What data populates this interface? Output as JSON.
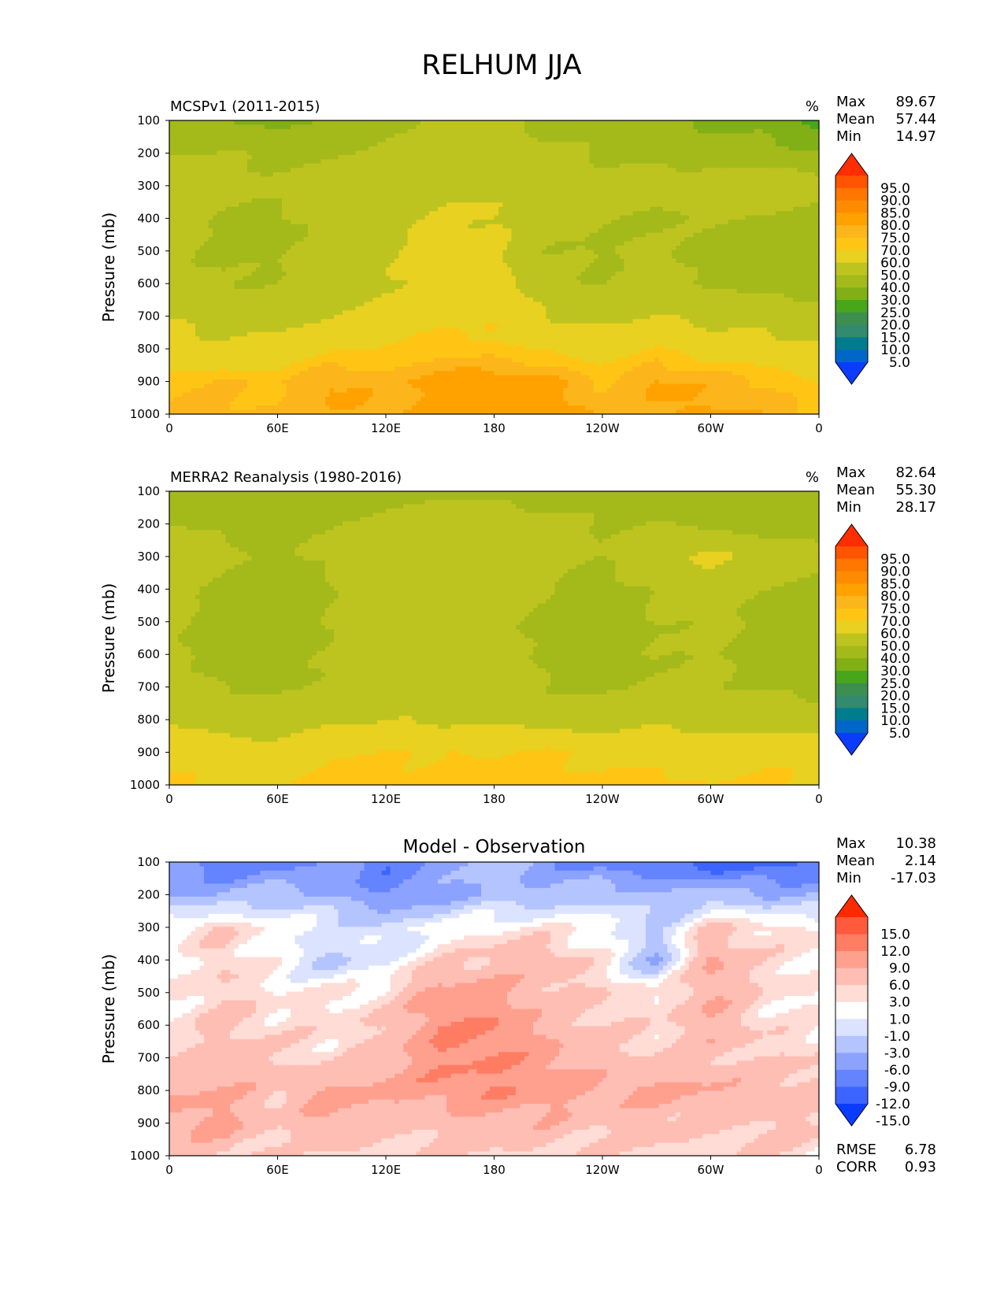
{
  "title": "RELHUM JJA",
  "chart_data": [
    {
      "type": "heatmap",
      "title": "MCSPv1 (2011-2015)",
      "units": "%",
      "ylabel": "Pressure (mb)",
      "x_ticks": [
        "0",
        "60E",
        "120E",
        "180",
        "120W",
        "60W",
        "0"
      ],
      "x_values": [
        0,
        60,
        120,
        180,
        240,
        300,
        360
      ],
      "y_ticks": [
        "100",
        "200",
        "300",
        "400",
        "500",
        "600",
        "700",
        "800",
        "900",
        "1000"
      ],
      "xlim": [
        0,
        360
      ],
      "ylim": [
        100,
        1000
      ],
      "stats": [
        {
          "label": "Max",
          "value": "89.67"
        },
        {
          "label": "Mean",
          "value": "57.44"
        },
        {
          "label": "Min",
          "value": "14.97"
        }
      ],
      "colorbar": {
        "levels": [
          "95.0",
          "90.0",
          "85.0",
          "80.0",
          "75.0",
          "70.0",
          "60.0",
          "50.0",
          "40.0",
          "30.0",
          "25.0",
          "20.0",
          "15.0",
          "10.0",
          "5.0"
        ],
        "colors": [
          "#ff2d00",
          "#ff5400",
          "#ff7600",
          "#ff8c00",
          "#ffa200",
          "#fcb61c",
          "#ffc514",
          "#e8d120",
          "#bec41f",
          "#a4ba1a",
          "#80b016",
          "#48a61a",
          "#3d8f50",
          "#338a6e",
          "#007d8d",
          "#0067c8",
          "#0a3cff"
        ]
      },
      "grid": [
        [
          43,
          40,
          38,
          42,
          49,
          51,
          50,
          47,
          45,
          41,
          38,
          36,
          25
        ],
        [
          49,
          50,
          47,
          48,
          53,
          55,
          55,
          53,
          49,
          46,
          45,
          44,
          42
        ],
        [
          58,
          53,
          52,
          55,
          58,
          59,
          59,
          56,
          52,
          55,
          57,
          56,
          54
        ],
        [
          54,
          50,
          48,
          53,
          57,
          60,
          61,
          56,
          50,
          48,
          51,
          48,
          46
        ],
        [
          54,
          47,
          49,
          55,
          58,
          66,
          62,
          50,
          49,
          52,
          47,
          45,
          45
        ],
        [
          54,
          50,
          51,
          54,
          59,
          64,
          65,
          53,
          50,
          54,
          49,
          47,
          46
        ],
        [
          59,
          55,
          56,
          59,
          63,
          67,
          69,
          60,
          56,
          60,
          57,
          55,
          54
        ],
        [
          64,
          63,
          63,
          69,
          70,
          73,
          71,
          69,
          66,
          70,
          66,
          64,
          62
        ],
        [
          73,
          75,
          74,
          81,
          77,
          83,
          84,
          82,
          74,
          81,
          78,
          75,
          70
        ],
        [
          76,
          77,
          75,
          80,
          80,
          82,
          85,
          85,
          78,
          80,
          81,
          79,
          74
        ]
      ]
    },
    {
      "type": "heatmap",
      "title": "MERRA2 Reanalysis (1980-2016)",
      "units": "%",
      "ylabel": "Pressure (mb)",
      "x_ticks": [
        "0",
        "60E",
        "120E",
        "180",
        "120W",
        "60W",
        "0"
      ],
      "x_values": [
        0,
        60,
        120,
        180,
        240,
        300,
        360
      ],
      "y_ticks": [
        "100",
        "200",
        "300",
        "400",
        "500",
        "600",
        "700",
        "800",
        "900",
        "1000"
      ],
      "xlim": [
        0,
        360
      ],
      "ylim": [
        100,
        1000
      ],
      "stats": [
        {
          "label": "Max",
          "value": "82.64"
        },
        {
          "label": "Mean",
          "value": "55.30"
        },
        {
          "label": "Min",
          "value": "28.17"
        }
      ],
      "colorbar": {
        "levels": [
          "95.0",
          "90.0",
          "85.0",
          "80.0",
          "75.0",
          "70.0",
          "60.0",
          "50.0",
          "40.0",
          "30.0",
          "25.0",
          "20.0",
          "15.0",
          "10.0",
          "5.0"
        ],
        "colors": [
          "#ff2d00",
          "#ff5400",
          "#ff7600",
          "#ff8c00",
          "#ffa200",
          "#fcb61c",
          "#ffc514",
          "#e8d120",
          "#bec41f",
          "#a4ba1a",
          "#80b016",
          "#48a61a",
          "#3d8f50",
          "#338a6e",
          "#007d8d",
          "#0067c8",
          "#0a3cff"
        ]
      },
      "grid": [
        [
          44,
          42,
          41,
          44,
          47,
          48,
          47,
          46,
          44,
          43,
          43,
          42,
          41
        ],
        [
          50,
          48,
          46,
          49,
          54,
          55,
          55,
          53,
          50,
          50,
          48,
          46,
          45
        ],
        [
          58,
          52,
          48,
          52,
          58,
          58,
          58,
          55,
          50,
          56,
          62,
          56,
          53
        ],
        [
          55,
          47,
          42,
          50,
          56,
          57,
          57,
          51,
          46,
          52,
          55,
          49,
          47
        ],
        [
          53,
          45,
          42,
          50,
          56,
          57,
          55,
          46,
          44,
          50,
          52,
          47,
          44
        ],
        [
          52,
          46,
          44,
          51,
          56,
          57,
          55,
          48,
          45,
          50,
          51,
          47,
          45
        ],
        [
          53,
          50,
          49,
          53,
          56,
          56,
          55,
          50,
          48,
          52,
          52,
          49,
          48
        ],
        [
          58,
          56,
          55,
          57,
          59,
          59,
          58,
          56,
          55,
          57,
          56,
          55,
          54
        ],
        [
          67,
          65,
          63,
          70,
          69,
          70,
          70,
          71,
          67,
          68,
          67,
          68,
          66
        ],
        [
          72,
          69,
          68,
          73,
          73,
          73,
          73,
          73,
          71,
          72,
          70,
          71,
          70
        ]
      ]
    },
    {
      "type": "heatmap",
      "title": "Model - Observation",
      "ylabel": "Pressure (mb)",
      "x_ticks": [
        "0",
        "60E",
        "120E",
        "180",
        "120W",
        "60W",
        "0"
      ],
      "x_values": [
        0,
        60,
        120,
        180,
        240,
        300,
        360
      ],
      "y_ticks": [
        "100",
        "200",
        "300",
        "400",
        "500",
        "600",
        "700",
        "800",
        "900",
        "1000"
      ],
      "xlim": [
        0,
        360
      ],
      "ylim": [
        100,
        1000
      ],
      "stats": [
        {
          "label": "Max",
          "value": "10.38"
        },
        {
          "label": "Mean",
          "value": "2.14"
        },
        {
          "label": "Min",
          "value": "-17.03"
        }
      ],
      "extra_stats": [
        {
          "label": "RMSE",
          "value": "6.78"
        },
        {
          "label": "CORR",
          "value": "0.93"
        }
      ],
      "colorbar": {
        "levels": [
          "15.0",
          "12.0",
          "9.0",
          "6.0",
          "3.0",
          "1.0",
          "-1.0",
          "-3.0",
          "-6.0",
          "-9.0",
          "-12.0",
          "-15.0"
        ],
        "colors": [
          "#ff2a00",
          "#ff5a3c",
          "#ff7d62",
          "#ffa08f",
          "#ffbeb4",
          "#ffdcd6",
          "#ffffff",
          "#dce3ff",
          "#b4c4ff",
          "#8ca2ff",
          "#6484ff",
          "#3c64ff",
          "#0a3cff"
        ]
      },
      "grid": [
        [
          -9,
          -12,
          -10,
          -8,
          -12,
          -7,
          -4,
          -8,
          -11,
          -12,
          -14,
          -14,
          -12
        ],
        [
          -6,
          -6,
          -4,
          -6,
          -9,
          -7,
          -5,
          -5,
          -3,
          -6,
          -4,
          -6,
          -6
        ],
        [
          1,
          3,
          0,
          -1,
          -3,
          0,
          1,
          1,
          0,
          -3,
          3,
          2,
          1
        ],
        [
          -1,
          3,
          0,
          -4,
          -1,
          2,
          4,
          5,
          1,
          -6,
          7,
          2,
          1
        ],
        [
          1,
          3,
          1,
          1,
          2,
          8,
          7,
          4,
          3,
          1,
          6,
          2,
          1
        ],
        [
          1,
          4,
          2,
          2,
          3,
          9,
          9,
          5,
          3,
          2,
          6,
          2,
          1
        ],
        [
          3,
          4,
          3,
          2,
          5,
          9,
          9,
          7,
          4,
          3,
          4,
          3,
          3
        ],
        [
          6,
          6,
          4,
          7,
          7,
          8,
          9,
          8,
          6,
          7,
          6,
          5,
          4
        ],
        [
          6,
          7,
          3,
          6,
          4,
          4,
          5,
          5,
          4,
          4,
          3,
          4,
          3
        ],
        [
          3,
          4,
          2,
          3,
          2,
          3,
          3,
          3,
          2,
          3,
          2,
          3,
          2
        ]
      ]
    }
  ]
}
